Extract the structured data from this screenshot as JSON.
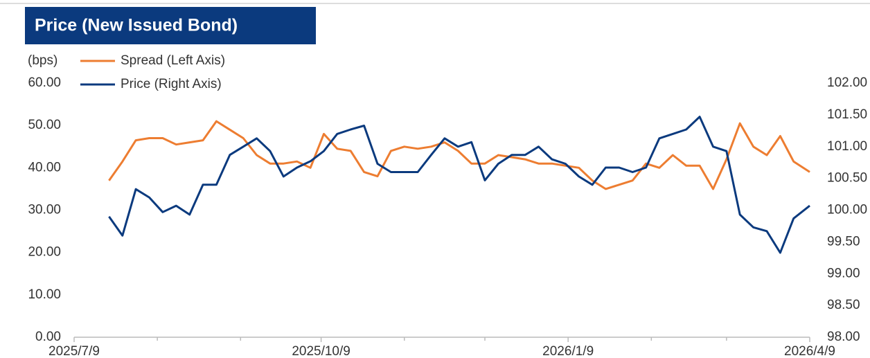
{
  "chart_data": {
    "type": "line",
    "title": "Price (New Issued Bond)",
    "y_label": "(bps)",
    "x": [
      "2025/7/22",
      "2025/7/27",
      "2025/8/1",
      "2025/8/6",
      "2025/8/11",
      "2025/8/16",
      "2025/8/21",
      "2025/8/26",
      "2025/8/31",
      "2025/9/5",
      "2025/9/10",
      "2025/9/15",
      "2025/9/20",
      "2025/9/25",
      "2025/9/30",
      "2025/10/5",
      "2025/10/10",
      "2025/10/15",
      "2025/10/20",
      "2025/10/25",
      "2025/10/30",
      "2025/11/4",
      "2025/11/9",
      "2025/11/14",
      "2025/11/19",
      "2025/11/24",
      "2025/11/29",
      "2025/12/4",
      "2025/12/9",
      "2025/12/14",
      "2025/12/19",
      "2025/12/24",
      "2025/12/29",
      "2026/1/3",
      "2026/1/8",
      "2026/1/13",
      "2026/1/18",
      "2026/1/23",
      "2026/1/28",
      "2026/2/2",
      "2026/2/7",
      "2026/2/12",
      "2026/2/17",
      "2026/2/22",
      "2026/2/27",
      "2026/3/4",
      "2026/3/9",
      "2026/3/14",
      "2026/3/19",
      "2026/3/24",
      "2026/3/29",
      "2026/4/3",
      "2026/4/9"
    ],
    "series": [
      {
        "name": "Spread (Left Axis)",
        "color": "#ed7d31",
        "axis": "y",
        "values": [
          37,
          41.5,
          46.5,
          47,
          47,
          45.5,
          46,
          46.5,
          51,
          49,
          47,
          43,
          41,
          41,
          41.5,
          40,
          48,
          44.5,
          44,
          39,
          38,
          44,
          45,
          44.5,
          45,
          46,
          44,
          41,
          41,
          43,
          42.5,
          42,
          41,
          41,
          40.5,
          40,
          37,
          35,
          36,
          37,
          41,
          40,
          43,
          40.5,
          40.5,
          35,
          42,
          50.5,
          45,
          43,
          47.5,
          41.5,
          39
        ]
      },
      {
        "name": "Price (Right Axis)",
        "color": "#0b3a7e",
        "axis": "y2",
        "values": [
          99.9,
          99.6,
          100.33,
          100.2,
          99.97,
          100.07,
          99.93,
          100.4,
          100.4,
          100.87,
          101,
          101.13,
          100.93,
          100.53,
          100.67,
          100.77,
          100.93,
          101.2,
          101.27,
          101.33,
          100.73,
          100.6,
          100.6,
          100.6,
          100.87,
          101.13,
          101,
          101.07,
          100.47,
          100.73,
          100.87,
          100.87,
          101,
          100.8,
          100.73,
          100.53,
          100.4,
          100.67,
          100.67,
          100.6,
          100.67,
          101.13,
          101.2,
          101.27,
          101.47,
          101,
          100.93,
          99.93,
          99.73,
          99.67,
          99.33,
          99.87,
          100.07
        ]
      }
    ],
    "xlim": [
      "2025/7/9",
      "2026/4/9"
    ],
    "xticks": [
      "2025/7/9",
      "2025/10/9",
      "2026/1/9",
      "2026/4/9"
    ],
    "xminor_ticks": [
      "2025/8/9",
      "2025/9/9",
      "2025/11/9",
      "2025/12/9",
      "2026/2/9",
      "2026/3/9"
    ],
    "ylim": [
      0,
      60
    ],
    "yticks": [
      {
        "value": 0,
        "label": "0.00"
      },
      {
        "value": 10,
        "label": "10.00"
      },
      {
        "value": 20,
        "label": "20.00"
      },
      {
        "value": 30,
        "label": "30.00"
      },
      {
        "value": 40,
        "label": "40.00"
      },
      {
        "value": 50,
        "label": "50.00"
      },
      {
        "value": 60,
        "label": "60.00"
      }
    ],
    "y2lim": [
      98,
      102
    ],
    "y2ticks": [
      {
        "value": 98,
        "label": "98.00"
      },
      {
        "value": 98.5,
        "label": "98.50"
      },
      {
        "value": 99,
        "label": "99.00"
      },
      {
        "value": 99.5,
        "label": "99.50"
      },
      {
        "value": 100,
        "label": "100.00"
      },
      {
        "value": 100.5,
        "label": "100.50"
      },
      {
        "value": 101,
        "label": "101.00"
      },
      {
        "value": 101.5,
        "label": "101.50"
      },
      {
        "value": 102,
        "label": "102.00"
      }
    ],
    "grid": false
  }
}
